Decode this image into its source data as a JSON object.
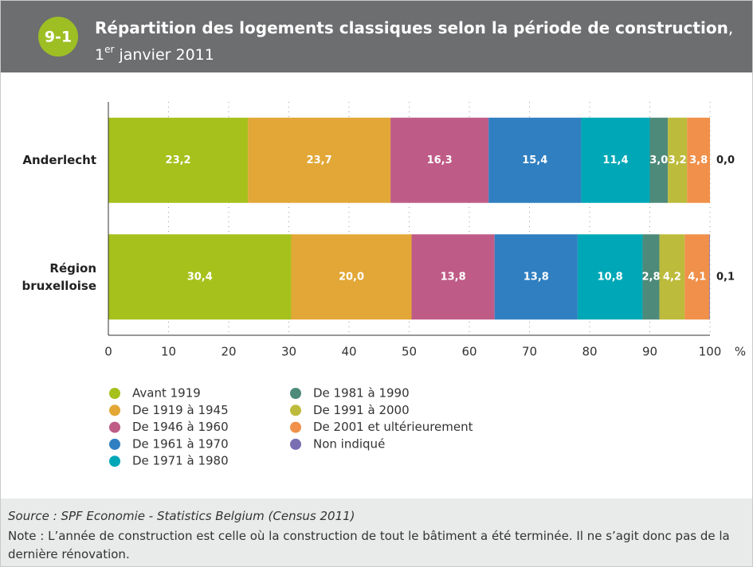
{
  "badge": "9-1",
  "chart_data": {
    "type": "stacked-barh",
    "title": "Répartition des logements classiques selon la période de construction",
    "title_punct": ",",
    "subtitle": {
      "day": "1",
      "sup": "er",
      "rest": " janvier 2011"
    },
    "categories": [
      "Anderlecht",
      "Région bruxelloise"
    ],
    "series": [
      {
        "name": "Avant 1919",
        "color": "#a6c11c",
        "values": [
          23.2,
          30.4
        ],
        "value_labels": [
          "23,2",
          "30,4"
        ]
      },
      {
        "name": "De 1919 à 1945",
        "color": "#e2a736",
        "values": [
          23.7,
          20.0
        ],
        "value_labels": [
          "23,7",
          "20,0"
        ]
      },
      {
        "name": "De 1946 à 1960",
        "color": "#bf5b87",
        "values": [
          16.3,
          13.8
        ],
        "value_labels": [
          "16,3",
          "13,8"
        ]
      },
      {
        "name": "De 1961 à 1970",
        "color": "#2f7fc1",
        "values": [
          15.4,
          13.8
        ],
        "value_labels": [
          "15,4",
          "13,8"
        ]
      },
      {
        "name": "De 1971 à 1980",
        "color": "#00a8b7",
        "values": [
          11.4,
          10.8
        ],
        "value_labels": [
          "11,4",
          "10,8"
        ]
      },
      {
        "name": "De 1981 à 1990",
        "color": "#4e8a79",
        "values": [
          3.0,
          2.8
        ],
        "value_labels": [
          "3,0",
          "2,8"
        ]
      },
      {
        "name": "De 1991 à 2000",
        "color": "#bdbb3b",
        "values": [
          3.2,
          4.2
        ],
        "value_labels": [
          "3,2",
          "4,2"
        ]
      },
      {
        "name": "De 2001 et ultérieurement",
        "color": "#f0904a",
        "values": [
          3.8,
          4.1
        ],
        "value_labels": [
          "3,8",
          "4,1"
        ]
      },
      {
        "name": "Non indiqué",
        "color": "#7a6eb3",
        "values": [
          0.0,
          0.1
        ],
        "value_labels": [
          "0,0",
          "0,1"
        ]
      }
    ],
    "xlim": [
      0,
      100
    ],
    "xticks": [
      0,
      10,
      20,
      30,
      40,
      50,
      60,
      70,
      80,
      90,
      100
    ],
    "x_unit": "%",
    "grid": true
  },
  "source": "Source : SPF Economie - Statistics Belgium (Census 2011)",
  "note": "Note : L’année de construction est celle où la construction de tout le bâtiment a été terminée. Il ne s’agit donc pas de la dernière rénovation."
}
